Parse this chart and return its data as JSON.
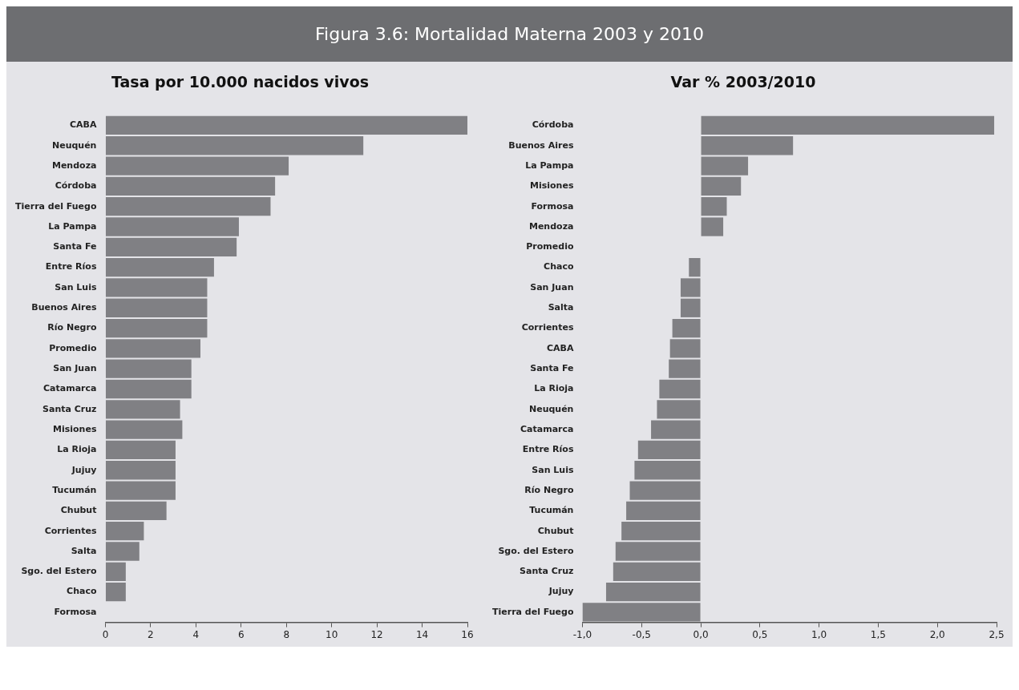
{
  "chart_data": [
    {
      "type": "bar",
      "orientation": "horizontal",
      "title": "Tasa por 10.000 nacidos vivos",
      "annotations": [
        "Figura 3.6: Mortalidad Materna 2003 y 2010"
      ],
      "categories": [
        "CABA",
        "Neuquén",
        "Mendoza",
        "Córdoba",
        "Tierra del Fuego",
        "La Pampa",
        "Santa Fe",
        "Entre Ríos",
        "San Luis",
        "Buenos Aires",
        "Río Negro",
        "Promedio",
        "San Juan",
        "Catamarca",
        "Santa Cruz",
        "Misiones",
        "La Rioja",
        "Jujuy",
        "Tucumán",
        "Chubut",
        "Corrientes",
        "Salta",
        "Sgo. del Estero",
        "Chaco",
        "Formosa"
      ],
      "values": [
        16.0,
        11.4,
        8.1,
        7.5,
        7.3,
        5.9,
        5.8,
        4.8,
        4.5,
        4.5,
        4.5,
        4.2,
        3.8,
        3.8,
        3.3,
        3.4,
        3.1,
        3.1,
        3.1,
        2.7,
        1.7,
        1.5,
        0.9,
        0.9,
        0
      ],
      "color": "#808084",
      "xlim": [
        0,
        16
      ],
      "xticks": [
        0,
        2,
        4,
        6,
        8,
        10,
        12,
        14,
        16
      ],
      "grid": false,
      "legend": false
    },
    {
      "type": "bar",
      "orientation": "horizontal",
      "title": "Var % 2003/2010",
      "categories": [
        "Córdoba",
        "Buenos Aires",
        "La Pampa",
        "Misiones",
        "Formosa",
        "Mendoza",
        "Promedio",
        "Chaco",
        "San Juan",
        "Salta",
        "Corrientes",
        "CABA",
        "Santa Fe",
        "La Rioja",
        "Neuquén",
        "Catamarca",
        "Entre Ríos",
        "San Luis",
        "Río Negro",
        "Tucumán",
        "Chubut",
        "Sgo. del Estero",
        "Santa Cruz",
        "Jujuy",
        "Tierra del Fuego"
      ],
      "values": [
        2.48,
        0.78,
        0.4,
        0.34,
        0.22,
        0.19,
        0,
        -0.1,
        -0.17,
        -0.17,
        -0.24,
        -0.26,
        -0.27,
        -0.35,
        -0.37,
        -0.42,
        -0.53,
        -0.56,
        -0.6,
        -0.63,
        -0.67,
        -0.72,
        -0.74,
        -0.8,
        -1.0
      ],
      "color": "#808084",
      "xlim": [
        -1,
        2.5
      ],
      "xticks": [
        {
          "value": -1,
          "label": "-1,0"
        },
        {
          "value": -0.5,
          "label": "-0,5"
        },
        {
          "value": 0,
          "label": "0,0"
        },
        {
          "value": 0.5,
          "label": "0,5"
        },
        {
          "value": 1,
          "label": "1,0"
        },
        {
          "value": 1.5,
          "label": "1,5"
        },
        {
          "value": 2,
          "label": "2,0"
        },
        {
          "value": 2.5,
          "label": "2,5"
        }
      ],
      "grid": false,
      "legend": false
    }
  ]
}
